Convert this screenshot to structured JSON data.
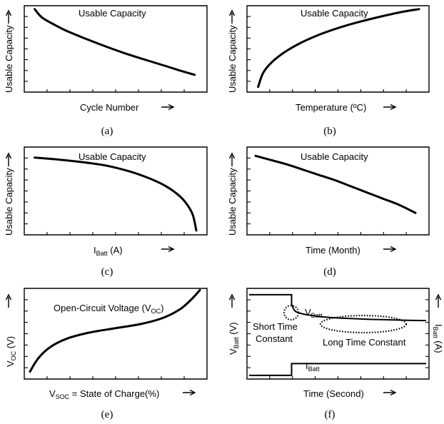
{
  "chart_data": [
    {
      "id": "a",
      "type": "line",
      "caption": "(a)",
      "title": "Usable Capacity",
      "xlabel": "Cycle Number",
      "ylabel": "Usable Capacity",
      "trend": "decreasing",
      "shape": "concave-up (steep initial drop, then near-linear decline)",
      "xlim": [
        0,
        1
      ],
      "ylim": [
        0,
        1
      ],
      "x": [
        0.02,
        0.06,
        0.12,
        0.2,
        0.3,
        0.42,
        0.55,
        0.68,
        0.8,
        0.9,
        0.99
      ],
      "y": [
        0.96,
        0.87,
        0.8,
        0.72,
        0.64,
        0.55,
        0.46,
        0.38,
        0.31,
        0.25,
        0.2
      ]
    },
    {
      "id": "b",
      "type": "line",
      "caption": "(b)",
      "title": "Usable Capacity",
      "xlabel": "Temperature (ºC)",
      "ylabel": "Usable Capacity",
      "trend": "increasing",
      "shape": "concave-down (rapid rise, saturating)",
      "xlim": [
        0,
        1
      ],
      "ylim": [
        0,
        1
      ],
      "x": [
        0.02,
        0.05,
        0.1,
        0.18,
        0.28,
        0.4,
        0.52,
        0.65,
        0.78,
        0.9,
        1.0
      ],
      "y": [
        0.06,
        0.22,
        0.34,
        0.46,
        0.57,
        0.67,
        0.75,
        0.82,
        0.88,
        0.93,
        0.96
      ]
    },
    {
      "id": "c",
      "type": "line",
      "caption": "(c)",
      "title": "Usable Capacity",
      "xlabel": "I",
      "xlabel_sub": "Batt",
      "xlabel_suffix": " (A)",
      "ylabel": "Usable Capacity",
      "trend": "decreasing",
      "shape": "concave-down (slow decline, then sharp drop)",
      "xlim": [
        0,
        1
      ],
      "ylim": [
        0,
        1
      ],
      "x": [
        0.02,
        0.15,
        0.3,
        0.45,
        0.6,
        0.72,
        0.82,
        0.9,
        0.95,
        0.98,
        1.0
      ],
      "y": [
        0.88,
        0.86,
        0.83,
        0.79,
        0.72,
        0.64,
        0.55,
        0.44,
        0.33,
        0.22,
        0.05
      ]
    },
    {
      "id": "d",
      "type": "line",
      "caption": "(d)",
      "title": "Usable Capacity",
      "xlabel": "Time (Month)",
      "ylabel": "Usable Capacity",
      "trend": "decreasing",
      "shape": "slightly concave-down, near-linear decline",
      "xlim": [
        0,
        1
      ],
      "ylim": [
        0,
        1
      ],
      "x": [
        0.0,
        0.1,
        0.2,
        0.3,
        0.4,
        0.5,
        0.6,
        0.7,
        0.8,
        0.9,
        1.0
      ],
      "y": [
        0.9,
        0.85,
        0.8,
        0.74,
        0.68,
        0.62,
        0.55,
        0.48,
        0.41,
        0.34,
        0.25
      ]
    },
    {
      "id": "e",
      "type": "line",
      "caption": "(e)",
      "title": "Open-Circuit Voltage (V",
      "title_sub": "OC",
      "title_suffix": ")",
      "xlabel": "V",
      "xlabel_sub": "SOC",
      "xlabel_suffix": " = State of Charge(%)",
      "ylabel": "V",
      "ylabel_sub": "OC",
      "ylabel_suffix": " (V)",
      "trend": "increasing",
      "shape": "S-shaped (steep rise, plateau, steep rise)",
      "xlim": [
        0,
        1
      ],
      "ylim": [
        0,
        1
      ],
      "x": [
        0.0,
        0.05,
        0.12,
        0.22,
        0.35,
        0.5,
        0.65,
        0.78,
        0.88,
        0.95,
        1.0
      ],
      "y": [
        0.02,
        0.18,
        0.31,
        0.41,
        0.48,
        0.53,
        0.58,
        0.65,
        0.75,
        0.87,
        0.98
      ]
    },
    {
      "id": "f",
      "type": "line",
      "caption": "(f)",
      "xlabel": "Time (Second)",
      "ylabel_left": "V",
      "ylabel_left_sub": "Batt",
      "ylabel_left_suffix": " (V)",
      "ylabel_right": "I",
      "ylabel_right_sub": "Batt",
      "ylabel_right_suffix": " (A)",
      "xlim": [
        0,
        1
      ],
      "ylim": [
        0,
        1
      ],
      "series": [
        {
          "name": "V",
          "name_sub": "Batt",
          "shape": "step down at load onset, then fast drop and slow decay",
          "x": [
            0.0,
            0.24,
            0.24,
            0.26,
            0.3,
            0.36,
            0.45,
            0.6,
            0.75,
            0.9,
            1.0
          ],
          "y": [
            0.93,
            0.93,
            0.82,
            0.75,
            0.72,
            0.7,
            0.68,
            0.665,
            0.655,
            0.648,
            0.645
          ]
        },
        {
          "name": "I",
          "name_sub": "Batt",
          "shape": "step up at load onset",
          "x": [
            0.0,
            0.24,
            0.24,
            1.0
          ],
          "y": [
            0.04,
            0.04,
            0.17,
            0.17
          ]
        }
      ],
      "annotations": [
        {
          "text": "Short Time",
          "text2": "Constant"
        },
        {
          "text": "Long Time Constant"
        }
      ]
    }
  ]
}
